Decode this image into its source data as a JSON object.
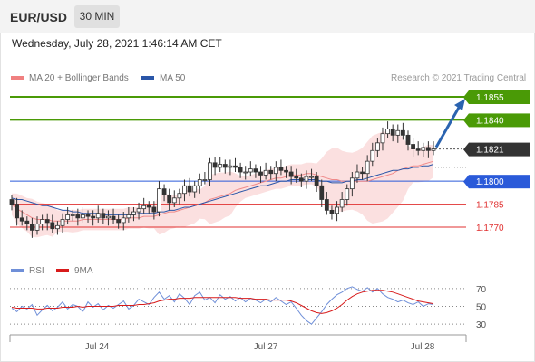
{
  "header": {
    "symbol": "EUR/USD",
    "timeframe": "30 MIN"
  },
  "datetime": "Wednesday, July 28, 2021 1:46:14 AM CET",
  "legend": {
    "items": [
      {
        "label": "MA 20 + Bollinger Bands",
        "color": "#f08080"
      },
      {
        "label": "MA 50",
        "color": "#2a56a8"
      }
    ],
    "copyright": "Research © 2021 Trading Central"
  },
  "rsi_legend": {
    "items": [
      {
        "label": "RSI",
        "color": "#6f8fd8"
      },
      {
        "label": "9MA",
        "color": "#d81b1b"
      }
    ]
  },
  "colors": {
    "resistance": "#4a9a06",
    "pivot": "#2a5ad9",
    "support": "#e03030",
    "last_price": "#333333",
    "band_fill": "#fbe0e0",
    "ma20": "#f08a8a",
    "ma50": "#2a56a8",
    "arrow": "#2a63b0"
  },
  "chart_data": [
    {
      "type": "candlestick",
      "title": "EUR/USD",
      "timeframe": "30 MIN",
      "x_ticks": [
        "Jul 24",
        "Jul 27",
        "Jul 28"
      ],
      "price_scale": {
        "price_a": 1.1855,
        "price_b": 1.177
      },
      "levels": [
        {
          "label": "1.1855",
          "value": 1.1855,
          "kind": "resistance"
        },
        {
          "label": "1.1840",
          "value": 1.184,
          "kind": "resistance"
        },
        {
          "label": "1.1821",
          "value": 1.1821,
          "kind": "last"
        },
        {
          "label": "1.1800",
          "value": 1.18,
          "kind": "pivot"
        },
        {
          "label": "1.1785",
          "value": 1.1785,
          "kind": "support"
        },
        {
          "label": "1.1770",
          "value": 1.177,
          "kind": "support"
        }
      ],
      "close": [
        1.1785,
        1.1776,
        1.1774,
        1.1772,
        1.1768,
        1.1772,
        1.1775,
        1.1773,
        1.1769,
        1.1771,
        1.1775,
        1.1778,
        1.1778,
        1.1776,
        1.1778,
        1.1777,
        1.1776,
        1.1779,
        1.1776,
        1.1777,
        1.1775,
        1.1773,
        1.1776,
        1.1778,
        1.178,
        1.1782,
        1.1784,
        1.1783,
        1.178,
        1.1795,
        1.1791,
        1.1786,
        1.1789,
        1.1792,
        1.1797,
        1.1793,
        1.1797,
        1.1801,
        1.1801,
        1.1812,
        1.1809,
        1.1811,
        1.1809,
        1.181,
        1.1809,
        1.1806,
        1.1806,
        1.1808,
        1.1806,
        1.1804,
        1.1807,
        1.1805,
        1.1809,
        1.1807,
        1.1806,
        1.1803,
        1.1802,
        1.18,
        1.1803,
        1.1803,
        1.1797,
        1.1788,
        1.1781,
        1.1779,
        1.1783,
        1.1788,
        1.1795,
        1.1802,
        1.1806,
        1.1805,
        1.1813,
        1.182,
        1.1825,
        1.1831,
        1.1834,
        1.183,
        1.1833,
        1.183,
        1.1824,
        1.1821,
        1.182,
        1.1822,
        1.182,
        1.1821
      ],
      "ma20": [
        1.1785,
        1.1782,
        1.178,
        1.1778,
        1.1776,
        1.1775,
        1.1775,
        1.1775,
        1.1774,
        1.1774,
        1.1774,
        1.1774,
        1.1774,
        1.1774,
        1.1775,
        1.1775,
        1.1775,
        1.1775,
        1.1775,
        1.1775,
        1.1775,
        1.1775,
        1.1775,
        1.1776,
        1.1776,
        1.1776,
        1.1777,
        1.1777,
        1.1777,
        1.1778,
        1.1779,
        1.178,
        1.178,
        1.1781,
        1.1782,
        1.1783,
        1.1784,
        1.1785,
        1.1786,
        1.1788,
        1.1789,
        1.179,
        1.1791,
        1.1792,
        1.1794,
        1.1795,
        1.1796,
        1.1797,
        1.1798,
        1.1799,
        1.18,
        1.1801,
        1.1802,
        1.1802,
        1.1803,
        1.1804,
        1.1804,
        1.1804,
        1.1805,
        1.1805,
        1.1804,
        1.1803,
        1.1802,
        1.1801,
        1.1801,
        1.18,
        1.18,
        1.18,
        1.18,
        1.18,
        1.18,
        1.1801,
        1.1802,
        1.1803,
        1.1804,
        1.1805,
        1.1807,
        1.1808,
        1.1809,
        1.181,
        1.181,
        1.1811,
        1.1812,
        1.1813
      ],
      "ma50": [
        1.1789,
        1.1788,
        1.1788,
        1.1787,
        1.1786,
        1.1785,
        1.1784,
        1.1784,
        1.1783,
        1.1782,
        1.1781,
        1.1781,
        1.178,
        1.178,
        1.1779,
        1.1779,
        1.1779,
        1.1779,
        1.1778,
        1.1778,
        1.1778,
        1.1778,
        1.1778,
        1.1778,
        1.1778,
        1.1779,
        1.1779,
        1.1779,
        1.1779,
        1.178,
        1.178,
        1.1781,
        1.1781,
        1.1782,
        1.1783,
        1.1783,
        1.1784,
        1.1785,
        1.1786,
        1.1787,
        1.1788,
        1.1789,
        1.179,
        1.1791,
        1.1792,
        1.1793,
        1.1794,
        1.1795,
        1.1796,
        1.1797,
        1.1797,
        1.1798,
        1.1799,
        1.18,
        1.18,
        1.1801,
        1.1801,
        1.1801,
        1.1801,
        1.1801,
        1.1801,
        1.18,
        1.18,
        1.1799,
        1.1799,
        1.1799,
        1.18,
        1.18,
        1.1801,
        1.1801,
        1.1802,
        1.1803,
        1.1804,
        1.1805,
        1.1806,
        1.1807,
        1.1807,
        1.1808,
        1.1808,
        1.1809,
        1.1809,
        1.181,
        1.181,
        1.1811
      ]
    },
    {
      "type": "line",
      "title": "RSI",
      "y_ticks": [
        70,
        50,
        30
      ],
      "ylim": [
        20,
        80
      ],
      "series": [
        {
          "name": "RSI",
          "values": [
            48,
            44,
            50,
            47,
            52,
            40,
            46,
            51,
            45,
            49,
            55,
            47,
            52,
            50,
            44,
            55,
            49,
            53,
            46,
            51,
            48,
            52,
            56,
            47,
            51,
            58,
            55,
            52,
            60,
            66,
            58,
            62,
            55,
            64,
            59,
            52,
            62,
            66,
            57,
            60,
            54,
            63,
            58,
            61,
            56,
            60,
            55,
            59,
            57,
            54,
            58,
            55,
            60,
            56,
            52,
            55,
            48,
            40,
            34,
            30,
            37,
            44,
            52,
            58,
            63,
            66,
            70,
            72,
            69,
            67,
            71,
            66,
            70,
            64,
            60,
            58,
            55,
            57,
            54,
            52,
            55,
            50,
            53,
            52
          ]
        },
        {
          "name": "9MA",
          "values": [
            49,
            48,
            48,
            48,
            48,
            47,
            47,
            48,
            48,
            48,
            49,
            49,
            49,
            50,
            49,
            50,
            50,
            50,
            50,
            50,
            50,
            51,
            51,
            51,
            51,
            52,
            52,
            53,
            54,
            56,
            57,
            58,
            58,
            59,
            59,
            59,
            60,
            60,
            60,
            60,
            60,
            60,
            60,
            60,
            60,
            59,
            59,
            59,
            58,
            58,
            58,
            57,
            57,
            57,
            57,
            56,
            54,
            51,
            48,
            45,
            43,
            42,
            43,
            45,
            48,
            52,
            57,
            61,
            64,
            66,
            67,
            68,
            68,
            68,
            67,
            66,
            64,
            62,
            60,
            58,
            56,
            55,
            54,
            53
          ]
        }
      ]
    }
  ]
}
